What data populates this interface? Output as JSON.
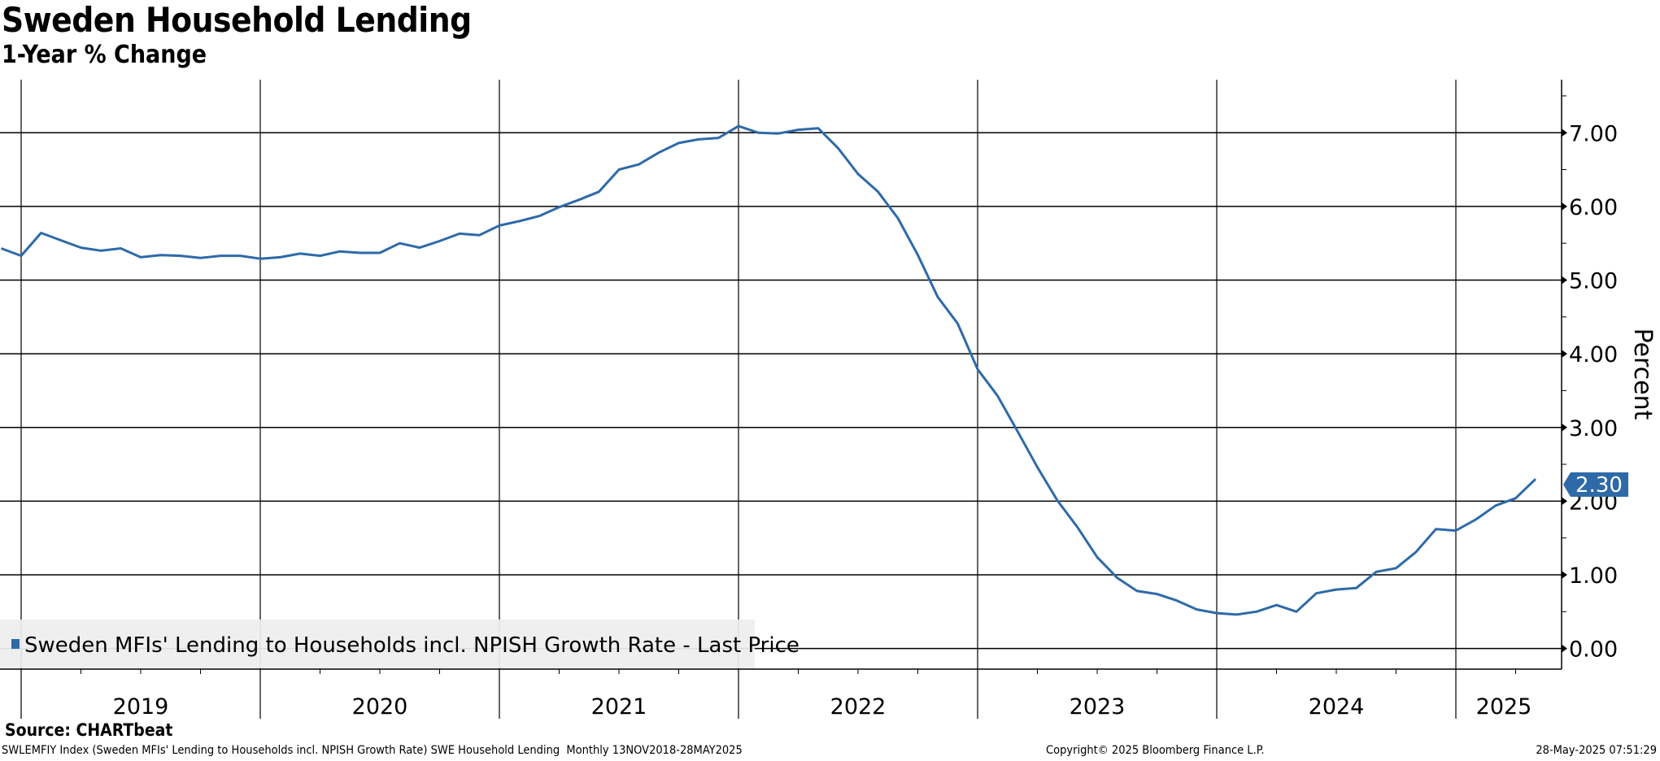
{
  "chart_data": {
    "type": "line",
    "title": "Sweden Household Lending",
    "subtitle": "1-Year % Change",
    "ylabel": "Percent",
    "xlabel": "",
    "ylim": [
      -0.28,
      7.72
    ],
    "yticks": [
      "0.00",
      "1.00",
      "2.00",
      "3.00",
      "4.00",
      "5.00",
      "6.00",
      "7.00"
    ],
    "xtick_labels": [
      "2019",
      "2020",
      "2021",
      "2022",
      "2023",
      "2024",
      "2025"
    ],
    "grid": true,
    "y_axis_side": "right",
    "legend_position": "bottom-left",
    "last_value_label": "2.30",
    "series": [
      {
        "name": "Sweden MFIs' Lending to Households incl. NPISH Growth Rate - Last Price",
        "color": "#2e6aa8",
        "x": [
          "2018-11",
          "2018-12",
          "2019-01",
          "2019-02",
          "2019-03",
          "2019-04",
          "2019-05",
          "2019-06",
          "2019-07",
          "2019-08",
          "2019-09",
          "2019-10",
          "2019-11",
          "2019-12",
          "2020-01",
          "2020-02",
          "2020-03",
          "2020-04",
          "2020-05",
          "2020-06",
          "2020-07",
          "2020-08",
          "2020-09",
          "2020-10",
          "2020-11",
          "2020-12",
          "2021-01",
          "2021-02",
          "2021-03",
          "2021-04",
          "2021-05",
          "2021-06",
          "2021-07",
          "2021-08",
          "2021-09",
          "2021-10",
          "2021-11",
          "2021-12",
          "2022-01",
          "2022-02",
          "2022-03",
          "2022-04",
          "2022-05",
          "2022-06",
          "2022-07",
          "2022-08",
          "2022-09",
          "2022-10",
          "2022-11",
          "2022-12",
          "2023-01",
          "2023-02",
          "2023-03",
          "2023-04",
          "2023-05",
          "2023-06",
          "2023-07",
          "2023-08",
          "2023-09",
          "2023-10",
          "2023-11",
          "2023-12",
          "2024-01",
          "2024-02",
          "2024-03",
          "2024-04",
          "2024-05",
          "2024-06",
          "2024-07",
          "2024-08",
          "2024-09",
          "2024-10",
          "2024-11",
          "2024-12",
          "2025-01",
          "2025-02",
          "2025-03",
          "2025-04"
        ],
        "values": [
          5.43,
          5.33,
          5.64,
          5.54,
          5.44,
          5.4,
          5.43,
          5.31,
          5.34,
          5.33,
          5.3,
          5.33,
          5.33,
          5.29,
          5.31,
          5.36,
          5.33,
          5.39,
          5.37,
          5.37,
          5.5,
          5.44,
          5.53,
          5.63,
          5.61,
          5.74,
          5.8,
          5.87,
          5.99,
          6.09,
          6.2,
          6.5,
          6.57,
          6.73,
          6.86,
          6.91,
          6.93,
          7.09,
          7.0,
          6.99,
          7.04,
          7.06,
          6.79,
          6.44,
          6.2,
          5.84,
          5.34,
          4.77,
          4.41,
          3.79,
          3.43,
          2.95,
          2.46,
          2.01,
          1.65,
          1.24,
          0.96,
          0.78,
          0.74,
          0.65,
          0.53,
          0.48,
          0.46,
          0.5,
          0.59,
          0.5,
          0.75,
          0.8,
          0.82,
          1.04,
          1.09,
          1.31,
          1.62,
          1.6,
          1.75,
          1.94,
          2.04,
          2.3
        ]
      }
    ]
  },
  "source": "Source: CHARTbeat",
  "footer": {
    "left": "SWLEMFIY Index (Sweden MFIs' Lending to Households incl. NPISH Growth Rate) SWE Household Lending  Monthly 13NOV2018-28MAY2025",
    "copyright": "Copyright© 2025 Bloomberg Finance L.P.",
    "timestamp": "28-May-2025 07:51:29"
  }
}
